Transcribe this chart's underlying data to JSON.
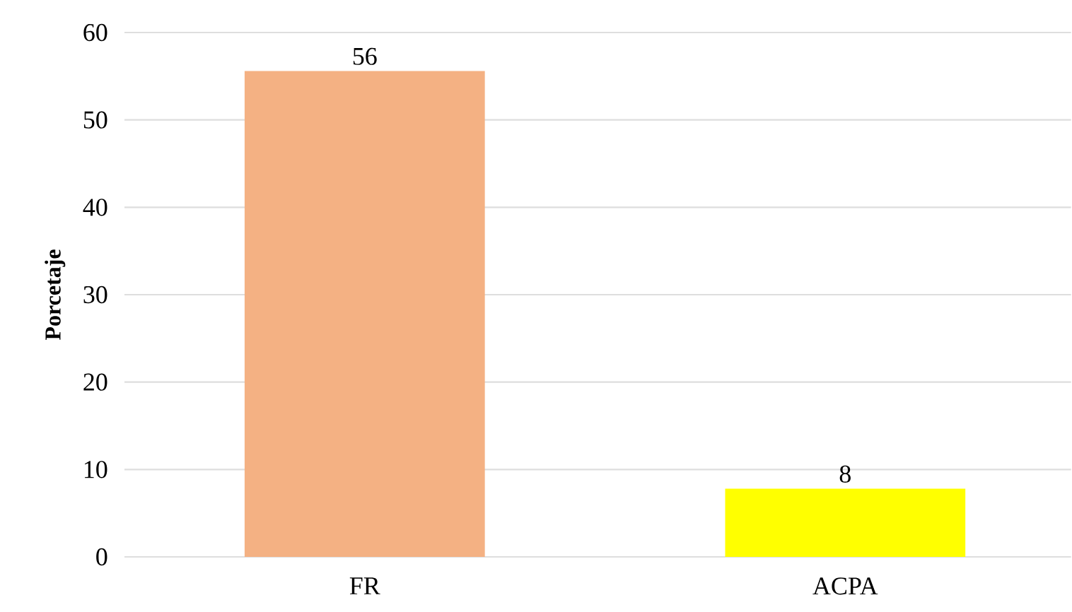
{
  "chart_data": {
    "type": "bar",
    "ylabel": "**Porcetaje**",
    "categories": [
      "FR",
      "ACPA"
    ],
    "values": [
      55.6,
      7.8
    ],
    "colors": [
      "#f4b183",
      "#ffff00"
    ],
    "value_labels": [
      "56",
      "8"
    ],
    "ylim": [
      0,
      60
    ],
    "yticks": [
      0,
      10,
      20,
      30,
      40,
      50,
      60
    ],
    "grid": "y"
  }
}
